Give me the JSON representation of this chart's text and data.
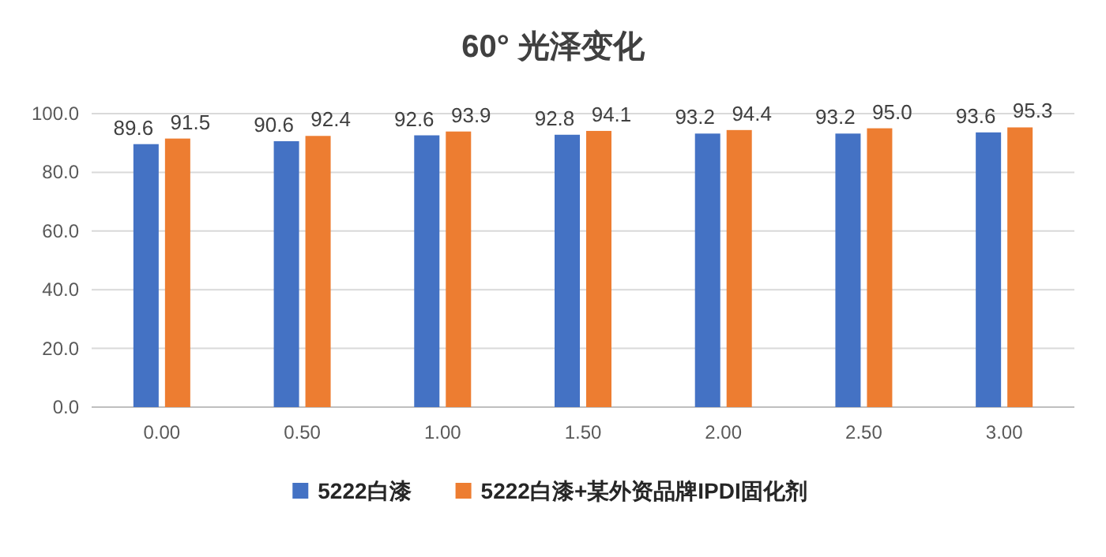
{
  "chart_data": {
    "type": "bar",
    "title": "60° 光泽变化",
    "categories": [
      "0.00",
      "0.50",
      "1.00",
      "1.50",
      "2.00",
      "2.50",
      "3.00"
    ],
    "series": [
      {
        "name": "5222白漆",
        "color": "#4472c4",
        "values": [
          89.6,
          90.6,
          92.6,
          92.8,
          93.2,
          93.2,
          93.6
        ]
      },
      {
        "name": "5222白漆+某外资品牌IPDI固化剂",
        "color": "#ed7d31",
        "values": [
          91.5,
          92.4,
          93.9,
          94.1,
          94.4,
          95.0,
          95.3
        ],
        "value_labels": [
          "91.5",
          "92.4",
          "93.9",
          "94.1",
          "94.4",
          "95.0",
          "95.3"
        ]
      }
    ],
    "ylim": [
      0,
      100
    ],
    "yticks": [
      {
        "value": 0,
        "label": "0.0"
      },
      {
        "value": 20,
        "label": "20.0"
      },
      {
        "value": 40,
        "label": "40.0"
      },
      {
        "value": 60,
        "label": "60.0"
      },
      {
        "value": 80,
        "label": "80.0"
      },
      {
        "value": 100,
        "label": "100.0"
      }
    ],
    "grid": "y",
    "legend": "bottom",
    "data_labels": true
  }
}
